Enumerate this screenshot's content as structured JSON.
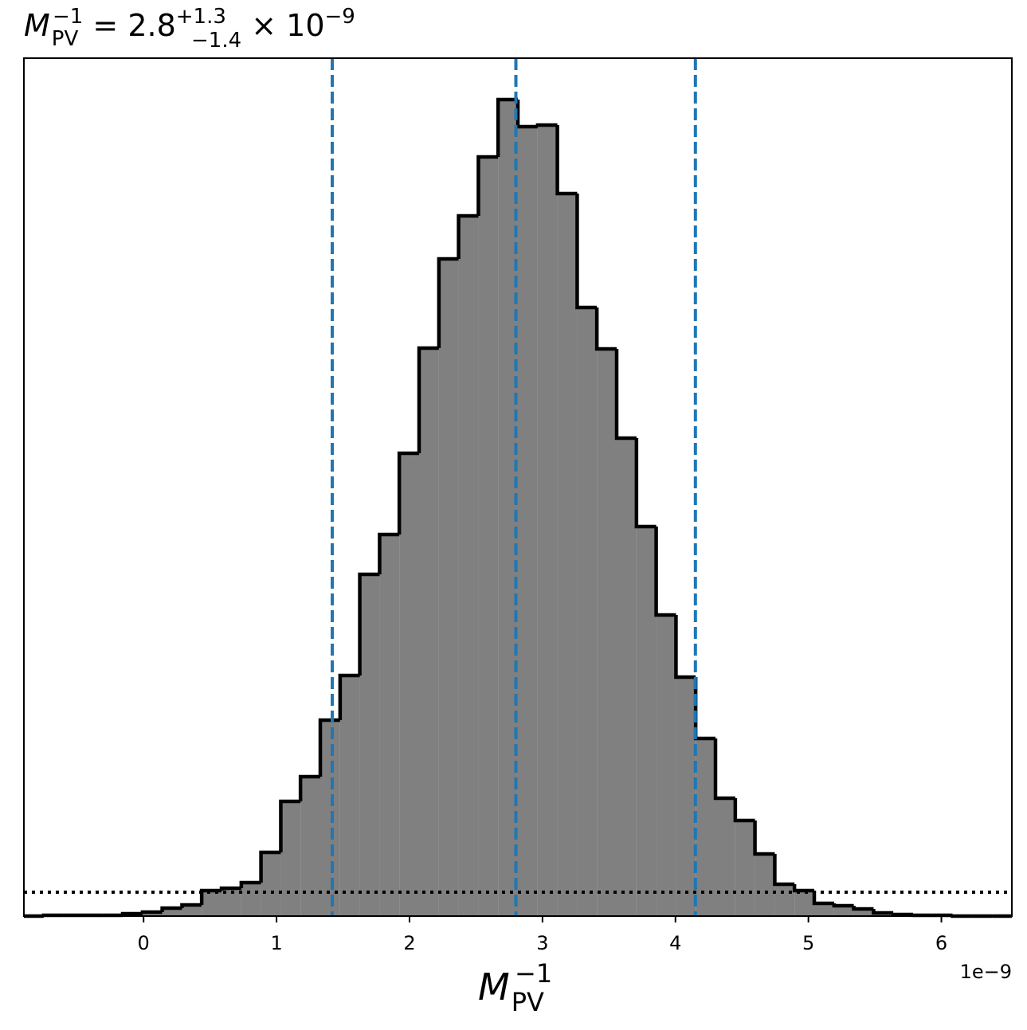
{
  "chart_data": {
    "type": "histogram",
    "title": {
      "symbol": "M",
      "sub": "PV",
      "sup": "−1",
      "eq": " = 2.8",
      "plus": "+1.3",
      "minus": "−1.4",
      "times": " × 10",
      "exp": "−9"
    },
    "xlabel": {
      "symbol": "M",
      "sub": "PV",
      "sup": "−1"
    },
    "x_offset_label": "1e−9",
    "bins": [
      -0.9,
      -0.751,
      -0.603,
      -0.454,
      -0.306,
      -0.157,
      -0.008,
      0.14,
      0.289,
      0.437,
      0.586,
      0.735,
      0.883,
      1.032,
      1.18,
      1.329,
      1.478,
      1.626,
      1.775,
      1.923,
      2.072,
      2.221,
      2.369,
      2.518,
      2.666,
      2.815,
      2.964,
      3.112,
      3.261,
      3.409,
      3.558,
      3.707,
      3.855,
      4.004,
      4.152,
      4.301,
      4.45,
      4.598,
      4.747,
      4.895,
      5.044,
      5.193,
      5.341,
      5.49,
      5.638,
      5.787,
      5.936,
      6.084,
      6.233,
      6.381,
      6.53
    ],
    "values": [
      0,
      1,
      1,
      1,
      1,
      3,
      5,
      10,
      14,
      32,
      35,
      42,
      80,
      144,
      175,
      246,
      302,
      429,
      479,
      581,
      713,
      825,
      879,
      953,
      1025,
      991,
      993,
      907,
      764,
      712,
      600,
      489,
      378,
      300,
      223,
      148,
      120,
      78,
      40,
      32,
      16,
      13,
      9,
      4,
      2,
      1,
      1,
      0,
      0,
      0
    ],
    "color": "#808080",
    "edge_color": "#000000",
    "xlim": [
      -0.9,
      6.53
    ],
    "ylim": [
      0,
      1077
    ],
    "xticks": [
      0,
      1,
      2,
      3,
      4,
      5,
      6
    ],
    "vlines": [
      1.419,
      2.8,
      4.15
    ],
    "vline_color": "#1f77b4",
    "hline": 30,
    "hline_color": "#000000"
  }
}
